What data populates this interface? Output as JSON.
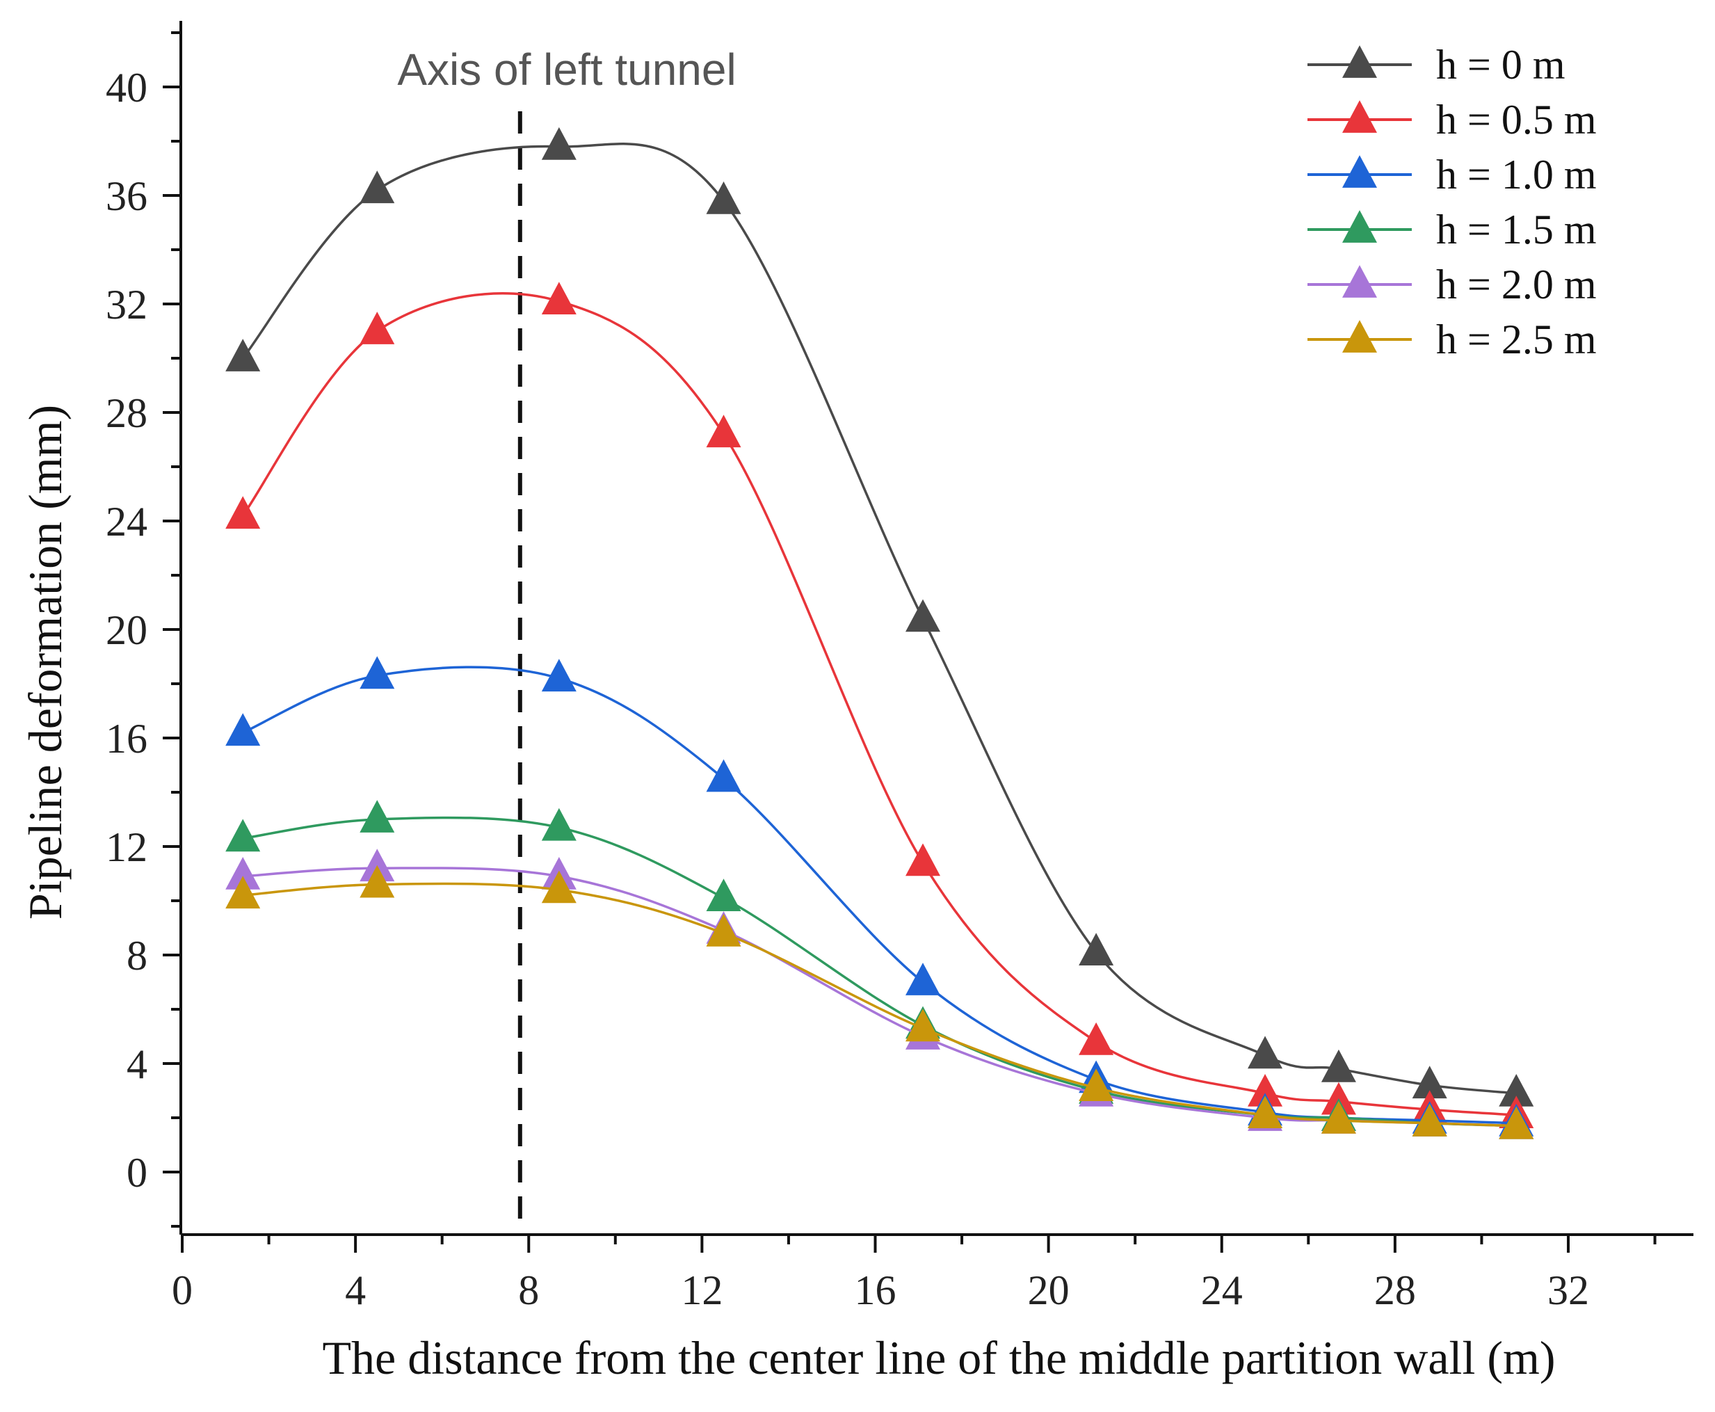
{
  "chart_data": {
    "type": "line",
    "title": "",
    "xlabel": "The distance from the center line of the middle partition wall (m)",
    "ylabel": "Pipeline deformation (mm)",
    "xlim": [
      0,
      35
    ],
    "ylim": [
      -2.5,
      42.5
    ],
    "xticks": [
      0,
      4,
      8,
      12,
      16,
      20,
      24,
      28,
      32
    ],
    "yticks": [
      0,
      4,
      8,
      12,
      16,
      20,
      24,
      28,
      32,
      36,
      40
    ],
    "x": [
      1.4,
      4.5,
      8.7,
      12.5,
      17.1,
      21.1,
      25.0,
      26.7,
      28.8,
      30.8
    ],
    "series": [
      {
        "name": "h = 0 m",
        "color": "#4a4a4a",
        "values": [
          30.0,
          36.2,
          37.8,
          35.8,
          20.4,
          8.1,
          4.3,
          3.8,
          3.2,
          2.9
        ]
      },
      {
        "name": "h = 0.5 m",
        "color": "#e8353a",
        "values": [
          24.2,
          31.0,
          32.1,
          27.2,
          11.4,
          4.8,
          2.9,
          2.6,
          2.3,
          2.1
        ]
      },
      {
        "name": "h = 1.0 m",
        "color": "#1e64d6",
        "values": [
          16.2,
          18.3,
          18.2,
          14.5,
          7.0,
          3.4,
          2.2,
          2.0,
          1.9,
          1.8
        ]
      },
      {
        "name": "h = 1.5 m",
        "color": "#2f9a5f",
        "values": [
          12.3,
          13.0,
          12.7,
          10.1,
          5.4,
          3.0,
          2.1,
          2.0,
          1.8,
          1.7
        ]
      },
      {
        "name": "h = 2.0 m",
        "color": "#a775d8",
        "values": [
          10.9,
          11.2,
          10.9,
          8.9,
          5.0,
          2.9,
          2.0,
          1.9,
          1.8,
          1.7
        ]
      },
      {
        "name": "h = 2.5 m",
        "color": "#c9960b",
        "values": [
          10.2,
          10.6,
          10.4,
          8.8,
          5.3,
          3.1,
          2.1,
          1.9,
          1.8,
          1.7
        ]
      }
    ],
    "annotations": [
      {
        "text": "Axis of left tunnel",
        "x": 7.8
      }
    ],
    "legend_position": "top-right",
    "grid": false
  }
}
